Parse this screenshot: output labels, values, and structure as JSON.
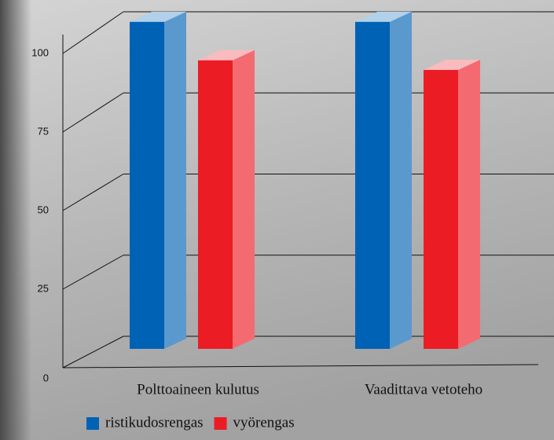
{
  "chart_data": {
    "type": "bar3d",
    "categories": [
      "Polttoaineen kulutus",
      "Vaadittava vetoteho"
    ],
    "series": [
      {
        "name": "ristikudosrengas",
        "color": "#0062b4",
        "values": [
          102,
          102
        ]
      },
      {
        "name": "vyörengas",
        "color": "#ec1c24",
        "values": [
          90,
          87
        ]
      }
    ],
    "ylim": [
      0,
      100
    ],
    "yticks": [
      0,
      25,
      50,
      75,
      100
    ],
    "grid": true
  }
}
